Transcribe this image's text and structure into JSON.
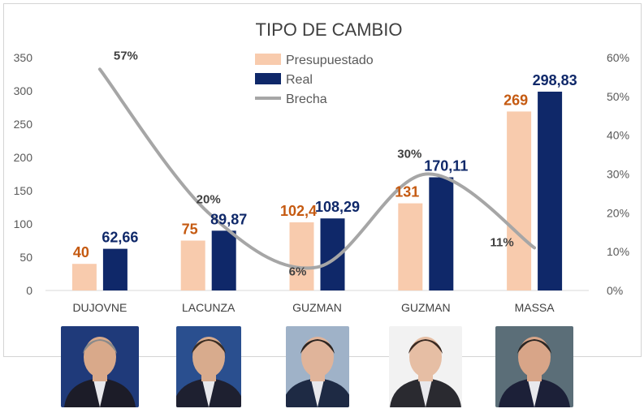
{
  "chart_data": {
    "type": "bar",
    "title": "TIPO DE CAMBIO",
    "categories": [
      "DUJOVNE",
      "LACUNZA",
      "GUZMAN",
      "GUZMAN",
      "MASSA"
    ],
    "series": [
      {
        "name": "Presupuestado",
        "kind": "bar",
        "axis": "left",
        "color": "#f8cbad",
        "values": [
          40,
          75,
          102.4,
          131,
          269
        ],
        "labels": [
          "40",
          "75",
          "102,4",
          "131",
          "269"
        ],
        "label_color": "#c55a11"
      },
      {
        "name": "Real",
        "kind": "bar",
        "axis": "left",
        "color": "#0f2869",
        "values": [
          62.66,
          89.87,
          108.29,
          170.11,
          298.83
        ],
        "labels": [
          "62,66",
          "89,87",
          "108,29",
          "170,11",
          "298,83"
        ],
        "label_color": "#0f2869"
      },
      {
        "name": "Brecha",
        "kind": "line",
        "axis": "right",
        "color": "#a6a6a6",
        "values": [
          57,
          20,
          6,
          30,
          11
        ],
        "labels": [
          "57%",
          "20%",
          "6%",
          "30%",
          "11%"
        ],
        "label_color": "#404040"
      }
    ],
    "ylim": [
      0,
      350
    ],
    "yticks": [
      "0",
      "50",
      "100",
      "150",
      "200",
      "250",
      "300",
      "350"
    ],
    "y2lim": [
      0,
      60
    ],
    "y2ticks": [
      "0%",
      "10%",
      "20%",
      "30%",
      "40%",
      "50%",
      "60%"
    ],
    "legend_position": "top-center",
    "grid": false
  },
  "photos": [
    {
      "name": "photo-dujovne",
      "icon": "person-portrait-icon",
      "bg": "#1f3a7a",
      "skin": "#d9a98a",
      "suit": "#1c1c28",
      "hair": "#8a8a8a"
    },
    {
      "name": "photo-lacunza",
      "icon": "person-portrait-icon",
      "bg": "#2a4f8f",
      "skin": "#d8ab8d",
      "suit": "#1e2030",
      "hair": "#3a2c22"
    },
    {
      "name": "photo-guzman-1",
      "icon": "person-portrait-icon",
      "bg": "#9fb2c8",
      "skin": "#e0b49a",
      "suit": "#1e2a44",
      "hair": "#2c2420"
    },
    {
      "name": "photo-guzman-2",
      "icon": "person-portrait-icon",
      "bg": "#f2f2f2",
      "skin": "#e6bea4",
      "suit": "#2a2a30",
      "hair": "#3a2a22"
    },
    {
      "name": "photo-massa",
      "icon": "person-portrait-icon",
      "bg": "#5b6e78",
      "skin": "#d8a588",
      "suit": "#1c2038",
      "hair": "#2a2624"
    }
  ]
}
